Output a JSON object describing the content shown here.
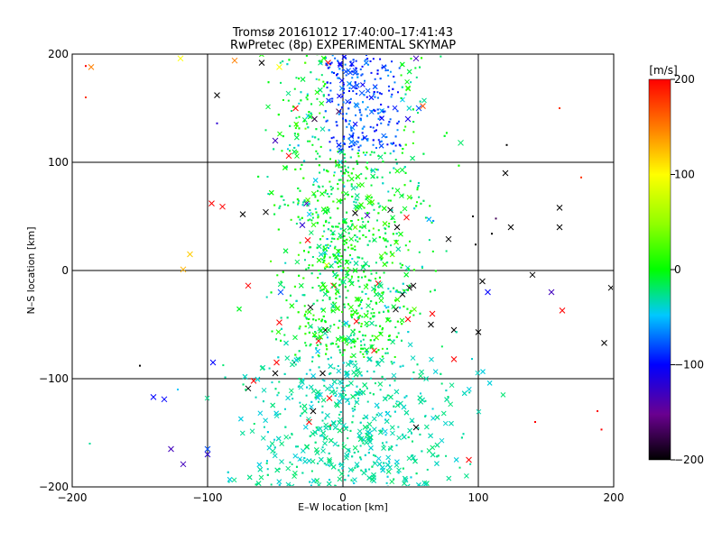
{
  "chart_data": {
    "type": "scatter",
    "title": "Tromsø 20161012 17:40:00–17:41:43",
    "subtitle": "RwPretec (8p) EXPERIMENTAL SKYMAP",
    "xlabel": "E–W location [km]",
    "ylabel": "N–S location [km]",
    "xlim": [
      -200,
      200
    ],
    "ylim": [
      -200,
      200
    ],
    "xticks": [
      "−200",
      "−100",
      "0",
      "100",
      "200"
    ],
    "yticks": [
      "−200",
      "−100",
      "0",
      "100",
      "200"
    ],
    "grid": true,
    "colorbar": {
      "label": "[m/s]",
      "range": [
        -200,
        200
      ],
      "ticks": [
        "200",
        "100",
        "0",
        "−100",
        "−200"
      ],
      "colormap": "black-purple-blue-cyan-green-yellow-red"
    },
    "markers": [
      "dot",
      "cross"
    ],
    "points": [
      [
        -186,
        188,
        150,
        "x"
      ],
      [
        -120,
        196,
        100,
        "x"
      ],
      [
        -80,
        194,
        150,
        "x"
      ],
      [
        -60,
        192,
        -200,
        "x"
      ],
      [
        -47,
        188,
        100,
        "x"
      ],
      [
        -11,
        192,
        200,
        "x"
      ],
      [
        54,
        196,
        -130,
        "x"
      ],
      [
        -93,
        162,
        -200,
        "x"
      ],
      [
        59,
        152,
        170,
        "x"
      ],
      [
        -35,
        150,
        200,
        "x"
      ],
      [
        -21,
        140,
        -180,
        "x"
      ],
      [
        -50,
        120,
        -130,
        "x"
      ],
      [
        -40,
        106,
        200,
        "x"
      ],
      [
        -3,
        147,
        -170,
        "x"
      ],
      [
        87,
        118,
        -20,
        "x"
      ],
      [
        48,
        140,
        -110,
        "x"
      ],
      [
        56,
        150,
        -80,
        "x"
      ],
      [
        14,
        164,
        -80,
        "x"
      ],
      [
        -97,
        62,
        200,
        "x"
      ],
      [
        -89,
        59,
        200,
        "x"
      ],
      [
        -27,
        62,
        -130,
        "x"
      ],
      [
        -57,
        54,
        -200,
        "x"
      ],
      [
        -74,
        52,
        -200,
        "x"
      ],
      [
        -30,
        42,
        -120,
        "x"
      ],
      [
        9,
        53,
        -200,
        "x"
      ],
      [
        18,
        51,
        -130,
        "x"
      ],
      [
        35,
        56,
        -200,
        "x"
      ],
      [
        47,
        49,
        200,
        "x"
      ],
      [
        40,
        40,
        -200,
        "x"
      ],
      [
        78,
        29,
        -200,
        "x"
      ],
      [
        120,
        90,
        -200,
        "x"
      ],
      [
        124,
        40,
        -200,
        "x"
      ],
      [
        160,
        58,
        -200,
        "x"
      ],
      [
        160,
        40,
        -200,
        "x"
      ],
      [
        -113,
        15,
        120,
        "x"
      ],
      [
        -118,
        1,
        130,
        "x"
      ],
      [
        -26,
        28,
        200,
        "x"
      ],
      [
        -12,
        5,
        80,
        "x"
      ],
      [
        -70,
        -14,
        200,
        "x"
      ],
      [
        -7,
        -14,
        200,
        "x"
      ],
      [
        26,
        -12,
        200,
        "x"
      ],
      [
        44,
        -22,
        -200,
        "x"
      ],
      [
        49,
        -16,
        -200,
        "x"
      ],
      [
        52,
        -14,
        -200,
        "x"
      ],
      [
        39,
        -36,
        -200,
        "x"
      ],
      [
        103,
        -10,
        -200,
        "x"
      ],
      [
        107,
        -20,
        -100,
        "x"
      ],
      [
        140,
        -4,
        -200,
        "x"
      ],
      [
        154,
        -20,
        -130,
        "x"
      ],
      [
        162,
        -37,
        200,
        "x"
      ],
      [
        198,
        -16,
        -200,
        "x"
      ],
      [
        193,
        -67,
        -200,
        "x"
      ],
      [
        -24,
        -34,
        -200,
        "x"
      ],
      [
        -13,
        -55,
        -200,
        "x"
      ],
      [
        -18,
        -65,
        200,
        "x"
      ],
      [
        65,
        -50,
        -200,
        "x"
      ],
      [
        66,
        -40,
        200,
        "x"
      ],
      [
        82,
        -55,
        -200,
        "x"
      ],
      [
        82,
        -82,
        200,
        "x"
      ],
      [
        100,
        -57,
        -200,
        "x"
      ],
      [
        -49,
        -85,
        200,
        "x"
      ],
      [
        -50,
        -95,
        -200,
        "x"
      ],
      [
        -66,
        -102,
        200,
        "x"
      ],
      [
        -70,
        -109,
        -200,
        "x"
      ],
      [
        -96,
        -85,
        -100,
        "x"
      ],
      [
        -100,
        -165,
        -80,
        "x"
      ],
      [
        -118,
        -179,
        -130,
        "x"
      ],
      [
        -140,
        -117,
        -100,
        "x"
      ],
      [
        -127,
        -165,
        -130,
        "x"
      ],
      [
        -10,
        -118,
        200,
        "x"
      ],
      [
        -22,
        -130,
        -200,
        "x"
      ],
      [
        -25,
        -140,
        200,
        "x"
      ],
      [
        -15,
        -95,
        -200,
        "x"
      ],
      [
        23,
        -74,
        200,
        "x"
      ],
      [
        54,
        -145,
        -200,
        "x"
      ],
      [
        93,
        -175,
        200,
        "x"
      ],
      [
        48,
        -45,
        200,
        "x"
      ],
      [
        10,
        -47,
        200,
        "x"
      ],
      [
        -46,
        -20,
        -80,
        "x"
      ],
      [
        -47,
        -48,
        200,
        "x"
      ],
      [
        -132,
        -119,
        -100,
        "x"
      ],
      [
        -100,
        -170,
        -120,
        "x"
      ],
      [
        -150,
        -88,
        -200,
        "dot"
      ],
      [
        -122,
        -110,
        -50,
        "dot"
      ],
      [
        -187,
        -160,
        -30,
        "dot"
      ],
      [
        -190,
        189,
        200,
        "dot"
      ],
      [
        -190,
        160,
        180,
        "dot"
      ],
      [
        -93,
        136,
        -120,
        "dot"
      ],
      [
        160,
        150,
        180,
        "dot"
      ],
      [
        121,
        116,
        -200,
        "dot"
      ],
      [
        176,
        86,
        180,
        "dot"
      ],
      [
        98,
        24,
        -200,
        "dot"
      ],
      [
        113,
        48,
        -170,
        "dot"
      ],
      [
        96,
        50,
        -200,
        "dot"
      ],
      [
        110,
        34,
        -200,
        "dot"
      ],
      [
        -36,
        -85,
        -200,
        "dot"
      ],
      [
        -9,
        -143,
        200,
        "dot"
      ],
      [
        191,
        -147,
        200,
        "dot"
      ],
      [
        188,
        -130,
        200,
        "dot"
      ],
      [
        142,
        -140,
        200,
        "dot"
      ]
    ]
  }
}
